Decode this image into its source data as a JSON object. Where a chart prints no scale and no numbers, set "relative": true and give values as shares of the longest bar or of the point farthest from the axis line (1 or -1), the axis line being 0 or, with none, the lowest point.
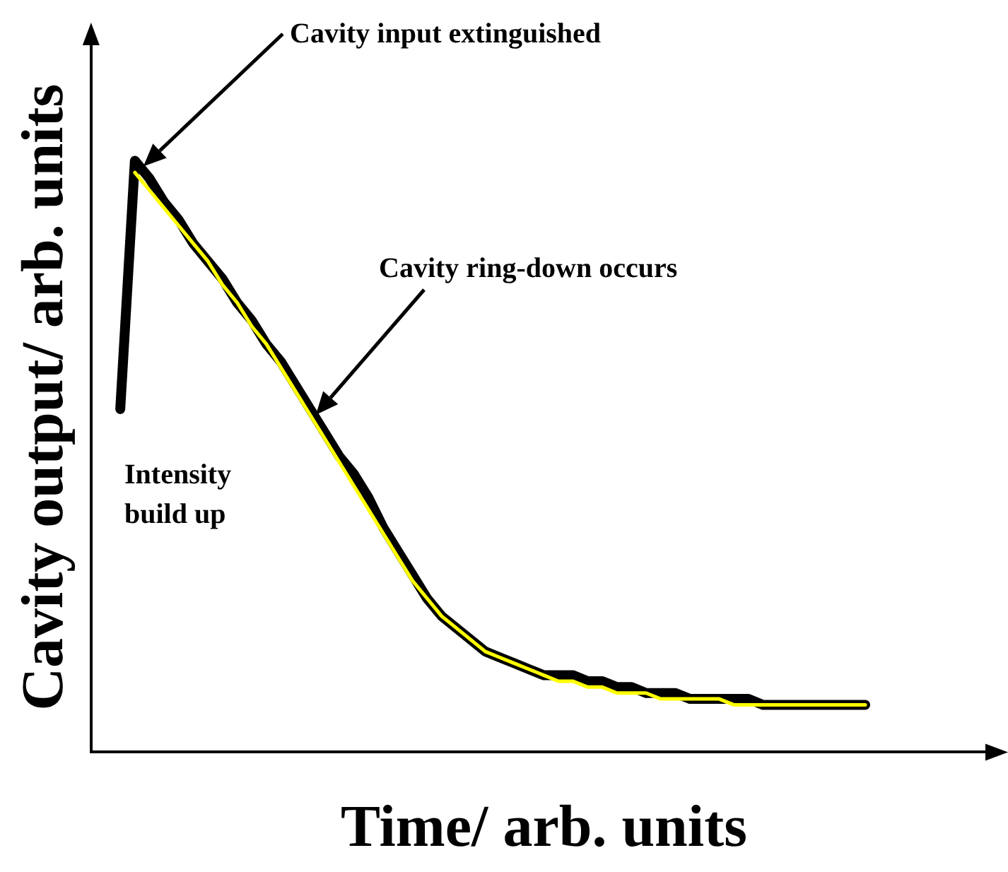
{
  "chart_data": {
    "type": "line",
    "relative": true,
    "xlabel": "Time/ arb. units",
    "ylabel": "Cavity output/ arb. units",
    "legend": false,
    "grid": false,
    "marker": "none",
    "categories": [
      null,
      null,
      null,
      null,
      null,
      null,
      null,
      null,
      null,
      null,
      null,
      null,
      null,
      null,
      null,
      null,
      null,
      null,
      null,
      null,
      null,
      null,
      null,
      null,
      null,
      null,
      null,
      null,
      null,
      null,
      null,
      null,
      null,
      null,
      null,
      null,
      null,
      null,
      null,
      null,
      null,
      null,
      null,
      null,
      null,
      null,
      null,
      null,
      null,
      null,
      null,
      null,
      null,
      null,
      null,
      null,
      null,
      null,
      null,
      null,
      null,
      null,
      null
    ],
    "series": [
      {
        "color": "#000000",
        "values": [
          null,
          null,
          0.58,
          1.0,
          0.97,
          0.93,
          0.9,
          0.86,
          0.83,
          0.8,
          0.76,
          0.73,
          0.69,
          0.66,
          0.62,
          0.58,
          0.54,
          0.5,
          0.47,
          0.43,
          0.38,
          0.34,
          0.3,
          0.26,
          0.23,
          0.21,
          0.19,
          0.17,
          0.16,
          0.15,
          0.14,
          0.13,
          0.13,
          0.13,
          0.12,
          0.12,
          0.11,
          0.11,
          0.1,
          0.1,
          0.1,
          0.09,
          0.09,
          0.09,
          0.09,
          0.09,
          0.08,
          0.08,
          0.08,
          0.08,
          0.08,
          0.08,
          0.08,
          0.08,
          null,
          null,
          null,
          null,
          null,
          null,
          null,
          null,
          null
        ]
      },
      {
        "color": "#ffff00",
        "values": [
          null,
          null,
          null,
          0.98,
          0.95,
          0.92,
          0.89,
          0.86,
          0.83,
          0.79,
          0.76,
          0.72,
          0.69,
          0.65,
          0.61,
          0.57,
          0.53,
          0.49,
          0.45,
          0.41,
          0.37,
          0.33,
          0.29,
          0.26,
          0.23,
          0.21,
          0.19,
          0.17,
          0.16,
          0.15,
          0.14,
          0.13,
          0.12,
          0.12,
          0.11,
          0.11,
          0.1,
          0.1,
          0.1,
          0.09,
          0.09,
          0.09,
          0.09,
          0.09,
          0.08,
          0.08,
          0.08,
          0.08,
          0.08,
          0.08,
          0.08,
          0.08,
          0.08,
          0.08,
          null,
          null,
          null,
          null,
          null,
          null,
          null,
          null,
          null
        ]
      }
    ],
    "annotations": [
      "Cavity input extinguished",
      "Cavity ring-down occurs",
      "Intensity\nbuild up"
    ]
  }
}
